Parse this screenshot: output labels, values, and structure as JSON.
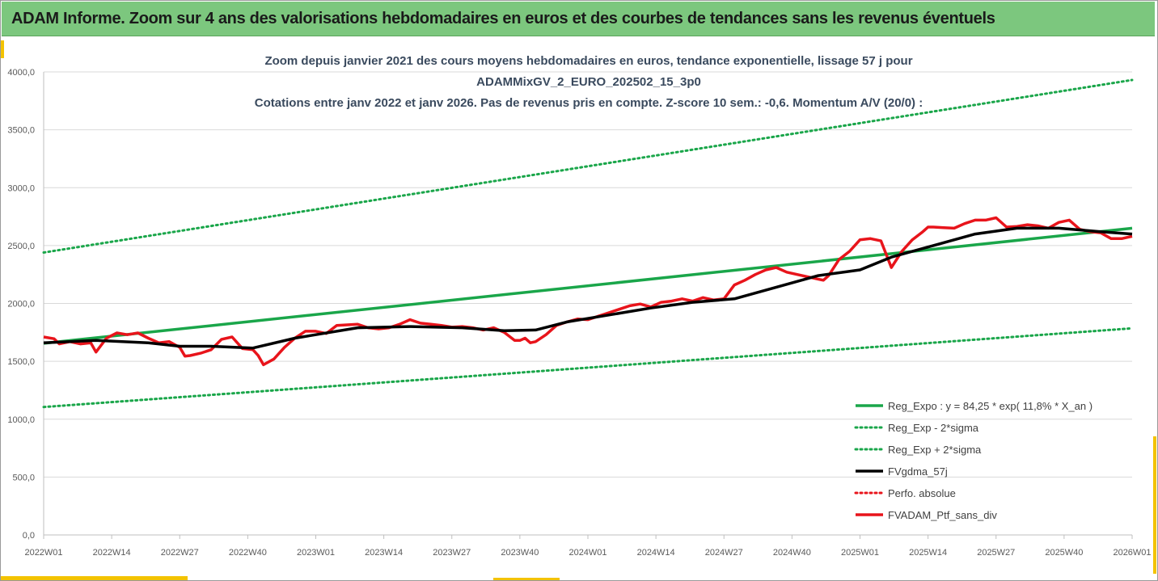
{
  "banner": {
    "title": "ADAM Informe. Zoom sur 4 ans des valorisations hebdomadaires en euros et des courbes de tendances sans les revenus éventuels"
  },
  "colors": {
    "banner_bg": "#7cc77e",
    "green": "#1aa64a",
    "black": "#000000",
    "red": "#e8141b",
    "grid": "#d9d9d9",
    "accent": "#f3c300"
  },
  "chart_data": {
    "type": "line",
    "title_lines": [
      "Zoom depuis janvier 2021 des cours moyens hebdomadaires  en euros, tendance exponentielle, lissage 57 j pour",
      "ADAMMixGV_2_EURO_202502_15_3p0",
      "Cotations entre janv 2022 et janv 2026. Pas de revenus pris en compte. Z-score 10 sem.: -0,6. Momentum A/V (20/0) :"
    ],
    "ylim": [
      0,
      4000
    ],
    "yticks": [
      0,
      500,
      1000,
      1500,
      2000,
      2500,
      3000,
      3500,
      4000
    ],
    "ytick_labels": [
      "0,0",
      "500,0",
      "1000,0",
      "1500,0",
      "2000,0",
      "2500,0",
      "3000,0",
      "3500,0",
      "4000,0"
    ],
    "xlim": [
      0,
      208
    ],
    "xtick_positions": [
      0,
      13,
      26,
      39,
      52,
      65,
      78,
      91,
      104,
      117,
      130,
      143,
      156,
      169,
      182,
      195,
      208
    ],
    "xtick_labels": [
      "2022W01",
      "2022W14",
      "2022W27",
      "2022W40",
      "2023W01",
      "2023W14",
      "2023W27",
      "2023W40",
      "2024W01",
      "2024W14",
      "2024W27",
      "2024W40",
      "2025W01",
      "2025W14",
      "2025W27",
      "2025W40",
      "2026W01"
    ],
    "series": [
      {
        "name": "Reg_Expo : y = 84,25 * exp( 11,8% *  X_an )",
        "style": "solid-green",
        "x": [
          0,
          208
        ],
        "y": [
          1655,
          2650
        ]
      },
      {
        "name": "Reg_Exp - 2*sigma",
        "style": "dotted-green",
        "x": [
          0,
          208
        ],
        "y": [
          1105,
          1785
        ]
      },
      {
        "name": "Reg_Exp + 2*sigma",
        "style": "dotted-green",
        "x": [
          0,
          208
        ],
        "y": [
          2440,
          3930
        ]
      },
      {
        "name": "FVgdma_57j",
        "style": "solid-black",
        "x": [
          0,
          10,
          20,
          26,
          32,
          40,
          48,
          52,
          60,
          70,
          80,
          88,
          94,
          100,
          108,
          116,
          124,
          132,
          140,
          148,
          156,
          162,
          170,
          178,
          186,
          194,
          202,
          208
        ],
        "y": [
          1660,
          1680,
          1660,
          1630,
          1630,
          1615,
          1700,
          1730,
          1790,
          1800,
          1790,
          1765,
          1770,
          1840,
          1900,
          1960,
          2010,
          2040,
          2140,
          2240,
          2290,
          2400,
          2500,
          2600,
          2650,
          2650,
          2620,
          2600
        ]
      },
      {
        "name": "Perfo. absolue",
        "style": "dotted-red",
        "x": [],
        "y": []
      },
      {
        "name": "FVADAM_Ptf_sans_div",
        "style": "solid-red",
        "x": [
          0,
          2,
          3,
          5,
          7,
          9,
          10,
          12,
          14,
          16,
          18,
          20,
          22,
          24,
          26,
          27,
          28,
          30,
          32,
          34,
          36,
          38,
          40,
          41,
          42,
          44,
          46,
          48,
          50,
          52,
          54,
          56,
          58,
          60,
          62,
          64,
          66,
          68,
          70,
          72,
          74,
          76,
          78,
          80,
          82,
          84,
          86,
          88,
          90,
          91,
          92,
          93,
          94,
          96,
          98,
          100,
          102,
          104,
          106,
          108,
          110,
          112,
          114,
          116,
          118,
          120,
          122,
          124,
          126,
          128,
          130,
          132,
          134,
          136,
          138,
          140,
          142,
          144,
          146,
          148,
          149,
          150,
          152,
          154,
          156,
          158,
          160,
          162,
          164,
          166,
          168,
          169,
          170,
          172,
          174,
          176,
          178,
          180,
          182,
          184,
          186,
          188,
          190,
          192,
          194,
          196,
          198,
          200,
          202,
          204,
          206,
          208
        ],
        "y": [
          1710,
          1695,
          1650,
          1670,
          1650,
          1660,
          1580,
          1700,
          1745,
          1730,
          1745,
          1700,
          1660,
          1670,
          1620,
          1545,
          1550,
          1570,
          1600,
          1690,
          1710,
          1610,
          1600,
          1550,
          1470,
          1520,
          1620,
          1700,
          1760,
          1760,
          1740,
          1810,
          1815,
          1820,
          1790,
          1780,
          1790,
          1820,
          1860,
          1830,
          1820,
          1810,
          1795,
          1800,
          1790,
          1770,
          1790,
          1750,
          1680,
          1680,
          1700,
          1660,
          1670,
          1730,
          1810,
          1840,
          1865,
          1860,
          1890,
          1920,
          1950,
          1980,
          1995,
          1970,
          2010,
          2020,
          2040,
          2020,
          2050,
          2030,
          2040,
          2160,
          2200,
          2250,
          2290,
          2310,
          2270,
          2250,
          2230,
          2210,
          2200,
          2240,
          2380,
          2450,
          2550,
          2560,
          2540,
          2310,
          2450,
          2550,
          2620,
          2660,
          2660,
          2655,
          2650,
          2690,
          2720,
          2720,
          2740,
          2660,
          2665,
          2680,
          2670,
          2650,
          2700,
          2720,
          2640,
          2620,
          2610,
          2560,
          2560,
          2580
        ]
      }
    ],
    "legend": {
      "position": "bottom-right",
      "entries": [
        "Reg_Expo : y = 84,25 * exp( 11,8% *  X_an )",
        "Reg_Exp - 2*sigma",
        "Reg_Exp + 2*sigma",
        "FVgdma_57j",
        "Perfo. absolue",
        "FVADAM_Ptf_sans_div"
      ]
    }
  }
}
